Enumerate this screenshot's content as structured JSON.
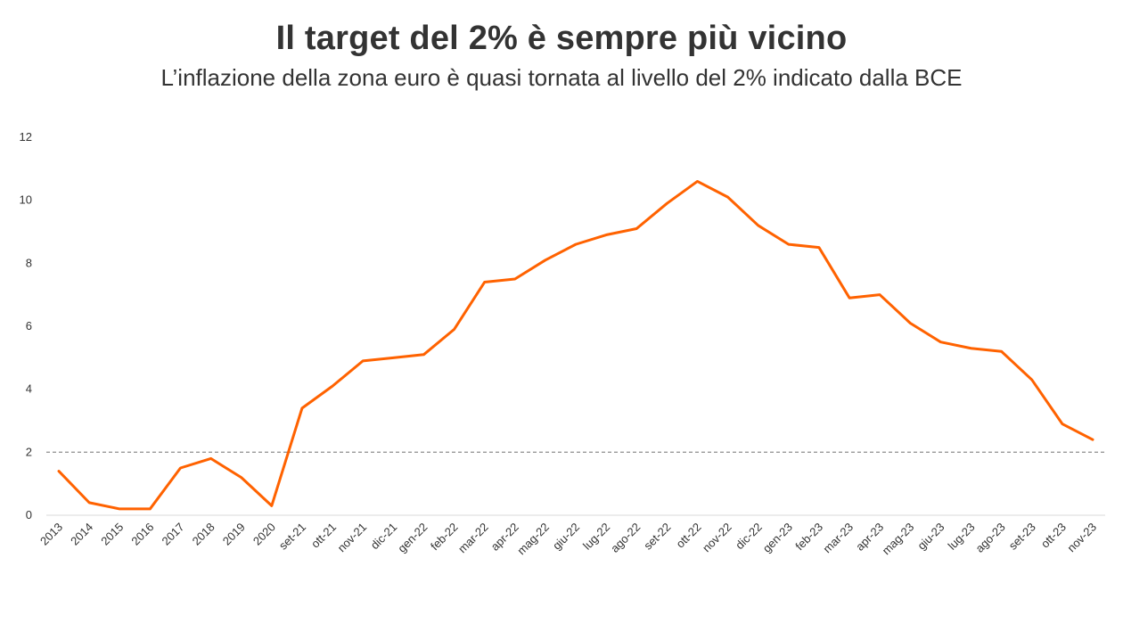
{
  "title": "Il target del 2% è sempre più vicino",
  "subtitle": "L’inflazione della zona euro è quasi tornata al livello del 2% indicato dalla BCE",
  "colors": {
    "series": "#FF6200",
    "reference_line": "#999999",
    "text": "#333333",
    "axis": "#d9d9d9"
  },
  "chart_data": {
    "type": "line",
    "categories": [
      "2013",
      "2014",
      "2015",
      "2016",
      "2017",
      "2018",
      "2019",
      "2020",
      "set-21",
      "ott-21",
      "nov-21",
      "dic-21",
      "gen-22",
      "feb-22",
      "mar-22",
      "apr-22",
      "mag-22",
      "giu-22",
      "lug-22",
      "ago-22",
      "set-22",
      "ott-22",
      "nov-22",
      "dic-22",
      "gen-23",
      "feb-23",
      "mar-23",
      "apr-23",
      "mag-23",
      "giu-23",
      "lug-23",
      "ago-23",
      "set-23",
      "ott-23",
      "nov-23"
    ],
    "series": [
      {
        "values": [
          1.4,
          0.4,
          0.2,
          0.2,
          1.5,
          1.8,
          1.2,
          0.3,
          3.4,
          4.1,
          4.9,
          5.0,
          5.1,
          5.9,
          7.4,
          7.5,
          8.1,
          8.6,
          8.9,
          9.1,
          9.9,
          10.6,
          10.1,
          9.2,
          8.6,
          8.5,
          6.9,
          7.0,
          6.1,
          5.5,
          5.3,
          5.2,
          4.3,
          2.9,
          2.4
        ]
      }
    ],
    "reference_line": {
      "value": 2,
      "style": "dashed"
    },
    "yticks": [
      "0",
      "2",
      "4",
      "6",
      "8",
      "10",
      "12"
    ],
    "ylim": [
      0,
      12
    ],
    "grid": false,
    "legend": "none",
    "xlabel": "",
    "ylabel": ""
  }
}
